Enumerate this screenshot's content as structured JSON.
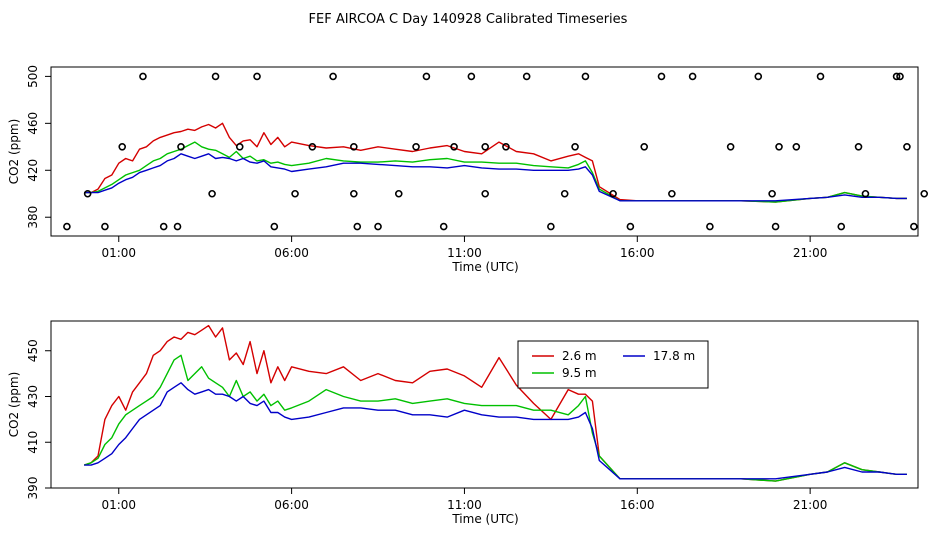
{
  "page_title": "FEF AIRCOA C  Day 140928  Calibrated Timeseries",
  "colors": {
    "red": "#d40000",
    "green": "#00c000",
    "blue": "#0000c8",
    "axis": "#000000"
  },
  "chart_data": [
    {
      "type": "line",
      "panel": "top",
      "title": "FEF AIRCOA C  Day 140928  Calibrated Timeseries",
      "xlabel": "Time (UTC)",
      "ylabel": "CO2 (ppm)",
      "xlim": [
        -0.96,
        24.12
      ],
      "ylim": [
        364,
        508
      ],
      "x_ticks": [
        1,
        6,
        11,
        16,
        21
      ],
      "x_tick_labels": [
        "01:00",
        "06:00",
        "11:00",
        "16:00",
        "21:00"
      ],
      "y_ticks": [
        380,
        420,
        460,
        500
      ],
      "y_tick_labels": [
        "380",
        "420",
        "460",
        "500"
      ],
      "legend": null,
      "series": [
        {
          "name": "2.6 m",
          "color": "red",
          "x": [
            0,
            0.2,
            0.4,
            0.6,
            0.8,
            1.0,
            1.2,
            1.4,
            1.6,
            1.8,
            2.0,
            2.2,
            2.4,
            2.6,
            2.8,
            3.0,
            3.2,
            3.4,
            3.6,
            3.8,
            4.0,
            4.2,
            4.4,
            4.6,
            4.8,
            5.0,
            5.2,
            5.4,
            5.6,
            5.8,
            6.0,
            6.5,
            7.0,
            7.5,
            8.0,
            8.5,
            9.0,
            9.5,
            10.0,
            10.5,
            11.0,
            11.5,
            12.0,
            12.5,
            13.0,
            13.5,
            14.0,
            14.3,
            14.5,
            14.7,
            14.9,
            15.5,
            16.0,
            17.0,
            18.0,
            19.0,
            20.0,
            21.0,
            21.5,
            22.0,
            22.5,
            23.0,
            23.5,
            23.8
          ],
          "y": [
            401,
            401,
            404,
            413,
            416,
            426,
            430,
            428,
            438,
            440,
            445,
            448,
            450,
            452,
            453,
            455,
            454,
            457,
            459,
            456,
            460,
            448,
            441,
            445,
            446,
            440,
            452,
            442,
            448,
            440,
            444,
            441,
            439,
            440,
            437,
            440,
            438,
            436,
            439,
            441,
            436,
            434,
            444,
            436,
            434,
            428,
            432,
            434,
            431,
            428,
            406,
            395,
            394,
            394,
            394,
            394,
            393,
            396,
            397,
            401,
            398,
            397,
            396,
            396
          ]
        },
        {
          "name": "9.5 m",
          "color": "green",
          "x": [
            0,
            0.2,
            0.4,
            0.6,
            0.8,
            1.0,
            1.2,
            1.4,
            1.6,
            1.8,
            2.0,
            2.2,
            2.4,
            2.6,
            2.8,
            3.0,
            3.2,
            3.4,
            3.6,
            3.8,
            4.0,
            4.2,
            4.4,
            4.6,
            4.8,
            5.0,
            5.2,
            5.4,
            5.6,
            5.8,
            6.0,
            6.5,
            7.0,
            7.5,
            8.0,
            8.5,
            9.0,
            9.5,
            10.0,
            10.5,
            11.0,
            11.5,
            12.0,
            12.5,
            13.0,
            13.5,
            14.0,
            14.3,
            14.5,
            14.7,
            14.9,
            15.5,
            16.0,
            17.0,
            18.0,
            19.0,
            20.0,
            21.0,
            21.5,
            22.0,
            22.5,
            23.0,
            23.5,
            23.8
          ],
          "y": [
            401,
            401,
            402,
            405,
            408,
            412,
            416,
            418,
            420,
            424,
            428,
            430,
            434,
            436,
            438,
            441,
            444,
            440,
            438,
            437,
            434,
            431,
            436,
            430,
            432,
            428,
            429,
            426,
            427,
            425,
            424,
            426,
            430,
            428,
            427,
            427,
            428,
            427,
            429,
            430,
            427,
            427,
            426,
            426,
            424,
            423,
            422,
            425,
            428,
            418,
            404,
            394,
            394,
            394,
            394,
            394,
            393,
            396,
            397,
            401,
            398,
            397,
            396,
            396
          ]
        },
        {
          "name": "17.8 m",
          "color": "blue",
          "x": [
            0,
            0.2,
            0.4,
            0.6,
            0.8,
            1.0,
            1.2,
            1.4,
            1.6,
            1.8,
            2.0,
            2.2,
            2.4,
            2.6,
            2.8,
            3.0,
            3.2,
            3.4,
            3.6,
            3.8,
            4.0,
            4.2,
            4.4,
            4.6,
            4.8,
            5.0,
            5.2,
            5.4,
            5.6,
            5.8,
            6.0,
            6.5,
            7.0,
            7.5,
            8.0,
            8.5,
            9.0,
            9.5,
            10.0,
            10.5,
            11.0,
            11.5,
            12.0,
            12.5,
            13.0,
            13.5,
            14.0,
            14.3,
            14.5,
            14.7,
            14.9,
            15.5,
            16.0,
            17.0,
            18.0,
            19.0,
            20.0,
            21.0,
            21.5,
            22.0,
            22.5,
            23.0,
            23.5,
            23.8
          ],
          "y": [
            401,
            401,
            401,
            403,
            405,
            409,
            412,
            414,
            418,
            420,
            422,
            424,
            428,
            430,
            434,
            432,
            430,
            432,
            434,
            430,
            431,
            430,
            428,
            430,
            427,
            426,
            428,
            423,
            422,
            421,
            419,
            421,
            423,
            426,
            426,
            425,
            424,
            423,
            423,
            422,
            424,
            422,
            421,
            421,
            420,
            420,
            420,
            421,
            423,
            416,
            402,
            394,
            394,
            394,
            394,
            394,
            394,
            396,
            397,
            399,
            397,
            397,
            396,
            396
          ]
        }
      ],
      "scatter": {
        "marker": "o",
        "x": [
          -0.5,
          0.1,
          0.6,
          1.1,
          1.7,
          2.3,
          2.7,
          2.8,
          3.7,
          3.8,
          4.5,
          5.0,
          5.5,
          6.1,
          6.6,
          7.2,
          7.8,
          7.8,
          7.9,
          8.5,
          9.1,
          9.6,
          9.9,
          10.4,
          10.7,
          11.2,
          11.6,
          11.6,
          12.2,
          12.8,
          13.5,
          13.9,
          14.2,
          14.5,
          15.3,
          15.8,
          16.2,
          16.7,
          17.0,
          17.6,
          18.1,
          18.7,
          19.5,
          19.9,
          20.0,
          20.1,
          20.6,
          21.3,
          21.9,
          22.4,
          22.6,
          23.5,
          23.6,
          23.8,
          24.0,
          24.3
        ],
        "y": [
          372,
          400,
          372,
          440,
          500,
          372,
          372,
          440,
          400,
          500,
          440,
          500,
          372,
          400,
          440,
          500,
          400,
          440,
          372,
          372,
          400,
          440,
          500,
          372,
          440,
          500,
          400,
          440,
          440,
          500,
          372,
          400,
          440,
          500,
          400,
          372,
          440,
          500,
          400,
          500,
          372,
          440,
          500,
          400,
          372,
          440,
          440,
          500,
          372,
          440,
          400,
          500,
          500,
          440,
          372,
          400
        ]
      }
    },
    {
      "type": "line",
      "panel": "bottom",
      "title": "",
      "xlabel": "Time (UTC)",
      "ylabel": "CO2 (ppm)",
      "xlim": [
        -0.96,
        24.12
      ],
      "ylim": [
        390,
        463
      ],
      "x_ticks": [
        1,
        6,
        11,
        16,
        21
      ],
      "x_tick_labels": [
        "01:00",
        "06:00",
        "11:00",
        "16:00",
        "21:00"
      ],
      "y_ticks": [
        390,
        410,
        430,
        450
      ],
      "y_tick_labels": [
        "390",
        "410",
        "430",
        "450"
      ],
      "legend": {
        "position": "top-center",
        "entries": [
          "2.6 m",
          "9.5 m",
          "17.8 m"
        ]
      },
      "series": [
        {
          "name": "2.6 m",
          "color": "red",
          "x": [
            0,
            0.2,
            0.4,
            0.6,
            0.8,
            1.0,
            1.2,
            1.4,
            1.6,
            1.8,
            2.0,
            2.2,
            2.4,
            2.6,
            2.8,
            3.0,
            3.2,
            3.4,
            3.6,
            3.8,
            4.0,
            4.2,
            4.4,
            4.6,
            4.8,
            5.0,
            5.2,
            5.4,
            5.6,
            5.8,
            6.0,
            6.5,
            7.0,
            7.5,
            8.0,
            8.5,
            9.0,
            9.5,
            10.0,
            10.5,
            11.0,
            11.5,
            12.0,
            12.5,
            13.0,
            13.5,
            14.0,
            14.3,
            14.5,
            14.7,
            14.9,
            15.5,
            16.0,
            17.0,
            18.0,
            19.0,
            20.0,
            21.0,
            21.5,
            22.0,
            22.5,
            23.0,
            23.5,
            23.8
          ],
          "y": [
            400,
            401,
            404,
            420,
            426,
            430,
            424,
            432,
            436,
            440,
            448,
            450,
            454,
            456,
            455,
            458,
            457,
            459,
            461,
            456,
            460,
            446,
            449,
            444,
            454,
            440,
            450,
            436,
            443,
            437,
            443,
            441,
            440,
            443,
            437,
            440,
            437,
            436,
            441,
            442,
            439,
            434,
            447,
            435,
            427,
            420,
            433,
            431,
            431,
            428,
            404,
            394,
            394,
            394,
            394,
            394,
            393,
            396,
            397,
            401,
            398,
            397,
            396,
            396
          ]
        },
        {
          "name": "9.5 m",
          "color": "green",
          "x": [
            0,
            0.2,
            0.4,
            0.6,
            0.8,
            1.0,
            1.2,
            1.4,
            1.6,
            1.8,
            2.0,
            2.2,
            2.4,
            2.6,
            2.8,
            3.0,
            3.2,
            3.4,
            3.6,
            3.8,
            4.0,
            4.2,
            4.4,
            4.6,
            4.8,
            5.0,
            5.2,
            5.4,
            5.6,
            5.8,
            6.0,
            6.5,
            7.0,
            7.5,
            8.0,
            8.5,
            9.0,
            9.5,
            10.0,
            10.5,
            11.0,
            11.5,
            12.0,
            12.5,
            13.0,
            13.5,
            14.0,
            14.3,
            14.5,
            14.7,
            14.9,
            15.5,
            16.0,
            17.0,
            18.0,
            19.0,
            20.0,
            21.0,
            21.5,
            22.0,
            22.5,
            23.0,
            23.5,
            23.8
          ],
          "y": [
            400,
            401,
            403,
            409,
            412,
            418,
            422,
            424,
            426,
            428,
            430,
            434,
            440,
            446,
            448,
            437,
            440,
            443,
            438,
            436,
            434,
            430,
            437,
            430,
            432,
            428,
            431,
            426,
            428,
            424,
            425,
            428,
            433,
            430,
            428,
            428,
            429,
            427,
            428,
            429,
            427,
            426,
            426,
            426,
            424,
            424,
            422,
            426,
            430,
            414,
            404,
            394,
            394,
            394,
            394,
            394,
            393,
            396,
            397,
            401,
            398,
            397,
            396,
            396
          ]
        },
        {
          "name": "17.8 m",
          "color": "blue",
          "x": [
            0,
            0.2,
            0.4,
            0.6,
            0.8,
            1.0,
            1.2,
            1.4,
            1.6,
            1.8,
            2.0,
            2.2,
            2.4,
            2.6,
            2.8,
            3.0,
            3.2,
            3.4,
            3.6,
            3.8,
            4.0,
            4.2,
            4.4,
            4.6,
            4.8,
            5.0,
            5.2,
            5.4,
            5.6,
            5.8,
            6.0,
            6.5,
            7.0,
            7.5,
            8.0,
            8.5,
            9.0,
            9.5,
            10.0,
            10.5,
            11.0,
            11.5,
            12.0,
            12.5,
            13.0,
            13.5,
            14.0,
            14.3,
            14.5,
            14.7,
            14.9,
            15.5,
            16.0,
            17.0,
            18.0,
            19.0,
            20.0,
            21.0,
            21.5,
            22.0,
            22.5,
            23.0,
            23.5,
            23.8
          ],
          "y": [
            400,
            400,
            401,
            403,
            405,
            409,
            412,
            416,
            420,
            422,
            424,
            426,
            432,
            434,
            436,
            433,
            431,
            432,
            433,
            431,
            431,
            430,
            428,
            430,
            427,
            426,
            428,
            423,
            423,
            421,
            420,
            421,
            423,
            425,
            425,
            424,
            424,
            422,
            422,
            421,
            424,
            422,
            421,
            421,
            420,
            420,
            420,
            421,
            423,
            416,
            402,
            394,
            394,
            394,
            394,
            394,
            394,
            396,
            397,
            399,
            397,
            397,
            396,
            396
          ]
        }
      ]
    }
  ]
}
